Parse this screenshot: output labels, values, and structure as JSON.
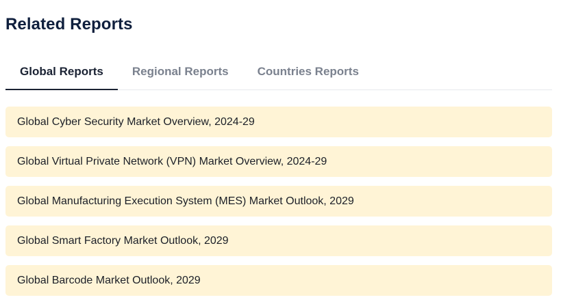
{
  "section": {
    "title": "Related Reports"
  },
  "tabs": [
    {
      "label": "Global Reports",
      "active": true
    },
    {
      "label": "Regional Reports",
      "active": false
    },
    {
      "label": "Countries Reports",
      "active": false
    }
  ],
  "reports": [
    {
      "title": "Global Cyber Security Market Overview, 2024-29"
    },
    {
      "title": "Global Virtual Private Network (VPN) Market Overview, 2024-29"
    },
    {
      "title": "Global Manufacturing Execution System (MES) Market Outlook, 2029"
    },
    {
      "title": "Global Smart Factory Market Outlook, 2029"
    },
    {
      "title": "Global Barcode Market Outlook, 2029"
    }
  ],
  "colors": {
    "item_background": "#fff4d6",
    "active_tab": "#1a2233",
    "inactive_tab": "#7a818e",
    "title": "#0f1f3d"
  }
}
